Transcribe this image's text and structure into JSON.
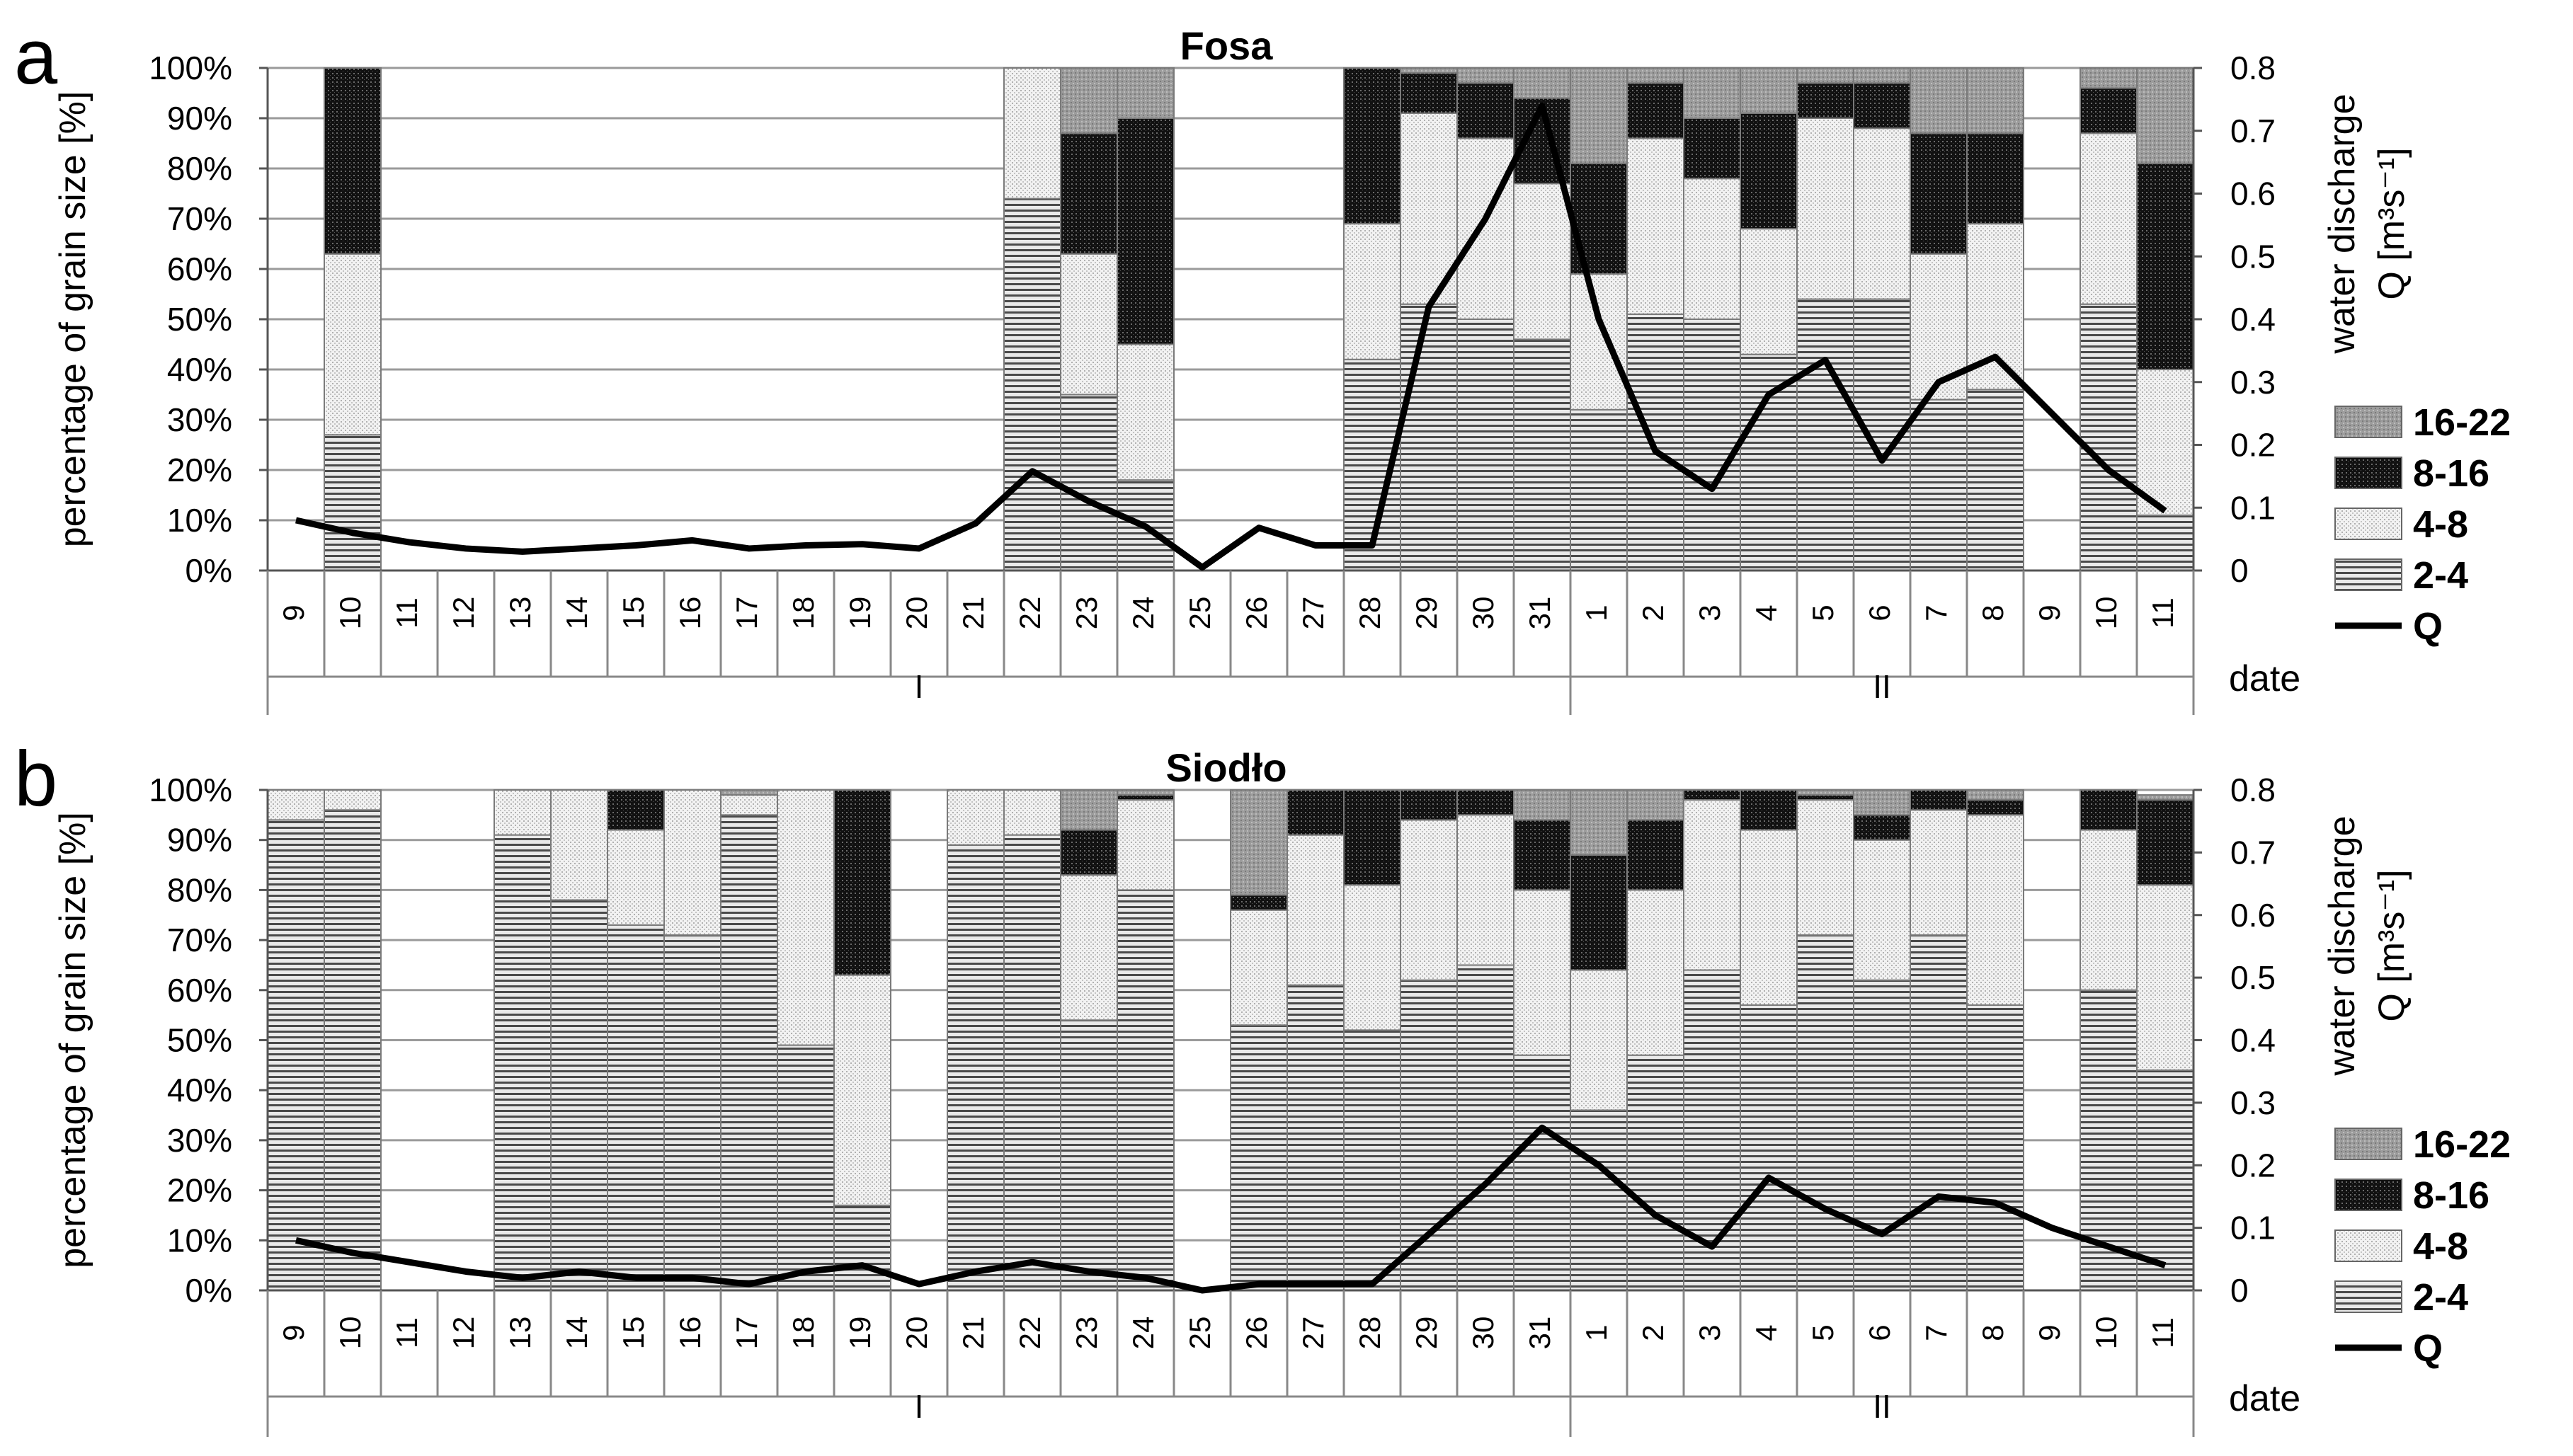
{
  "chart_data": [
    {
      "type": "bar",
      "panel_label": "a",
      "title": "Fosa",
      "ylabel": "percentage of grain size [%]",
      "y2label": [
        "water discharge",
        "Q [m³s⁻¹]"
      ],
      "xlabel": "date",
      "ylim": [
        0,
        100
      ],
      "y2lim": [
        0,
        0.8
      ],
      "yticks": [
        "0%",
        "10%",
        "20%",
        "30%",
        "40%",
        "50%",
        "60%",
        "70%",
        "80%",
        "90%",
        "100%"
      ],
      "y2ticks": [
        "0",
        "0.1",
        "0.2",
        "0.3",
        "0.4",
        "0.5",
        "0.6",
        "0.7",
        "0.8"
      ],
      "categories": [
        "9",
        "10",
        "11",
        "12",
        "13",
        "14",
        "15",
        "16",
        "17",
        "18",
        "19",
        "20",
        "21",
        "22",
        "23",
        "24",
        "25",
        "26",
        "27",
        "28",
        "29",
        "30",
        "31",
        "1",
        "2",
        "3",
        "4",
        "5",
        "6",
        "7",
        "8",
        "9",
        "10",
        "11"
      ],
      "months": [
        {
          "label": "I",
          "from": 0,
          "to": 22
        },
        {
          "label": "II",
          "from": 23,
          "to": 33
        }
      ],
      "legend": [
        "16-22",
        "8-16",
        "4-8",
        "2-4",
        "Q"
      ],
      "series": [
        {
          "name": "2-4",
          "values": [
            null,
            27,
            null,
            null,
            null,
            null,
            null,
            null,
            null,
            null,
            null,
            null,
            null,
            74,
            35,
            18,
            null,
            null,
            null,
            42,
            53,
            50,
            46,
            32,
            51,
            50,
            43,
            54,
            54,
            34,
            36,
            null,
            53,
            11
          ]
        },
        {
          "name": "4-8",
          "values": [
            null,
            36,
            null,
            null,
            null,
            null,
            null,
            null,
            null,
            null,
            null,
            null,
            null,
            26,
            28,
            27,
            null,
            null,
            null,
            27,
            38,
            36,
            31,
            27,
            35,
            28,
            25,
            36,
            34,
            29,
            33,
            null,
            34,
            29
          ]
        },
        {
          "name": "8-16",
          "values": [
            null,
            37,
            null,
            null,
            null,
            null,
            null,
            null,
            null,
            null,
            null,
            null,
            null,
            0,
            24,
            45,
            null,
            null,
            null,
            31,
            8,
            11,
            17,
            22,
            11,
            12,
            23,
            7,
            9,
            24,
            18,
            null,
            9,
            41
          ]
        },
        {
          "name": "16-22",
          "values": [
            null,
            0,
            null,
            null,
            null,
            null,
            null,
            null,
            null,
            null,
            null,
            null,
            null,
            0,
            13,
            10,
            null,
            null,
            null,
            0,
            1,
            3,
            6,
            19,
            3,
            10,
            9,
            3,
            3,
            13,
            13,
            null,
            4,
            19
          ]
        },
        {
          "name": "Q",
          "values": [
            0.08,
            0.06,
            0.045,
            0.035,
            0.03,
            0.035,
            0.04,
            0.048,
            0.035,
            0.04,
            0.042,
            0.035,
            0.075,
            0.158,
            0.11,
            0.07,
            0.005,
            0.068,
            0.04,
            0.04,
            0.42,
            0.56,
            0.74,
            0.4,
            0.19,
            0.13,
            0.28,
            0.335,
            0.175,
            0.3,
            0.34,
            0.25,
            0.16,
            0.095
          ]
        }
      ]
    },
    {
      "type": "bar",
      "panel_label": "b",
      "title": "Siodło",
      "ylabel": "percentage of grain size [%]",
      "y2label": [
        "water discharge",
        "Q [m³s⁻¹]"
      ],
      "xlabel": "date",
      "ylim": [
        0,
        100
      ],
      "y2lim": [
        0,
        0.8
      ],
      "yticks": [
        "0%",
        "10%",
        "20%",
        "30%",
        "40%",
        "50%",
        "60%",
        "70%",
        "80%",
        "90%",
        "100%"
      ],
      "y2ticks": [
        "0",
        "0.1",
        "0.2",
        "0.3",
        "0.4",
        "0.5",
        "0.6",
        "0.7",
        "0.8"
      ],
      "categories": [
        "9",
        "10",
        "11",
        "12",
        "13",
        "14",
        "15",
        "16",
        "17",
        "18",
        "19",
        "20",
        "21",
        "22",
        "23",
        "24",
        "25",
        "26",
        "27",
        "28",
        "29",
        "30",
        "31",
        "1",
        "2",
        "3",
        "4",
        "5",
        "6",
        "7",
        "8",
        "9",
        "10",
        "11"
      ],
      "months": [
        {
          "label": "I",
          "from": 0,
          "to": 22
        },
        {
          "label": "II",
          "from": 23,
          "to": 33
        }
      ],
      "legend": [
        "16-22",
        "8-16",
        "4-8",
        "2-4",
        "Q"
      ],
      "series": [
        {
          "name": "2-4",
          "values": [
            94,
            96,
            null,
            null,
            91,
            78,
            73,
            71,
            95,
            49,
            17,
            null,
            89,
            91,
            54,
            80,
            null,
            53,
            61,
            52,
            62,
            65,
            47,
            36,
            47,
            64,
            57,
            71,
            62,
            71,
            57,
            null,
            60,
            44
          ]
        },
        {
          "name": "4-8",
          "values": [
            6,
            4,
            null,
            null,
            9,
            22,
            19,
            29,
            4,
            51,
            46,
            null,
            11,
            9,
            29,
            18,
            null,
            23,
            30,
            29,
            32,
            30,
            33,
            28,
            33,
            34,
            35,
            27,
            28,
            25,
            38,
            null,
            32,
            37
          ]
        },
        {
          "name": "8-16",
          "values": [
            0,
            0,
            null,
            null,
            0,
            0,
            8,
            0,
            0,
            0,
            37,
            null,
            0,
            0,
            9,
            1,
            null,
            3,
            9,
            19,
            6,
            5,
            14,
            23,
            14,
            2,
            8,
            1,
            5,
            4,
            3,
            null,
            8,
            17
          ]
        },
        {
          "name": "16-22",
          "values": [
            0,
            0,
            null,
            null,
            0,
            0,
            0,
            0,
            1,
            0,
            0,
            null,
            0,
            0,
            8,
            1,
            null,
            21,
            0,
            0,
            0,
            0,
            6,
            13,
            6,
            0,
            0,
            1,
            5,
            0,
            2,
            null,
            0,
            1
          ]
        },
        {
          "name": "Q",
          "values": [
            0.08,
            0.06,
            0.045,
            0.03,
            0.02,
            0.03,
            0.02,
            0.02,
            0.01,
            0.03,
            0.04,
            0.01,
            0.03,
            0.045,
            0.03,
            0.02,
            0.0,
            0.01,
            0.01,
            0.01,
            0.09,
            0.17,
            0.26,
            0.2,
            0.12,
            0.07,
            0.18,
            0.13,
            0.09,
            0.15,
            0.14,
            0.1,
            0.07,
            0.04
          ]
        }
      ]
    }
  ]
}
